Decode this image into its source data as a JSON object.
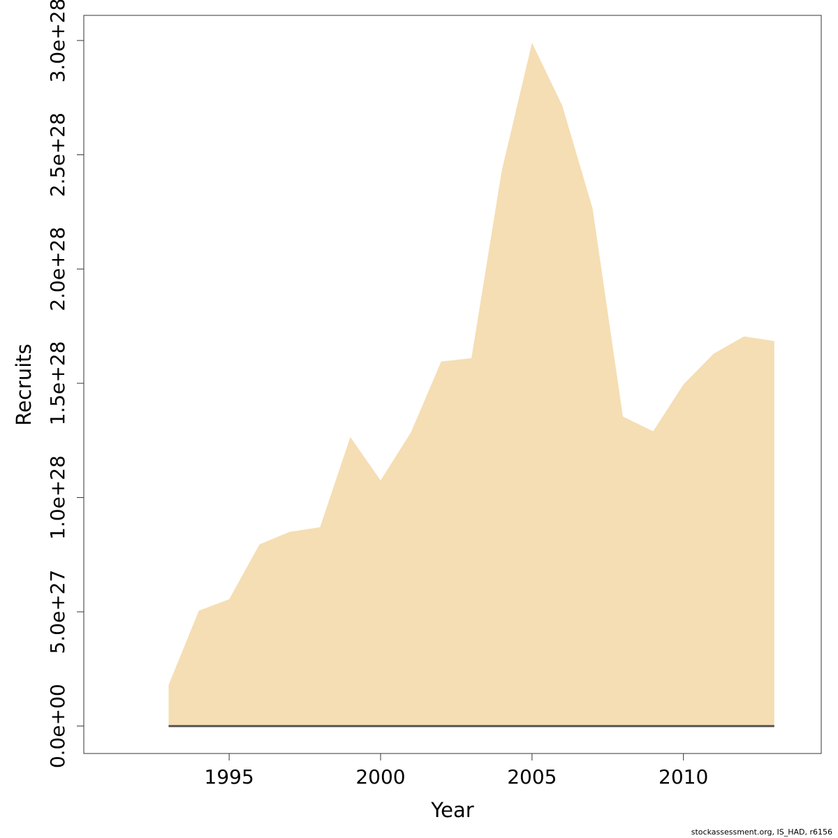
{
  "chart_data": {
    "type": "area",
    "title": "",
    "xlabel": "Year",
    "ylabel": "Recruits",
    "x": [
      1993,
      1994,
      1995,
      1996,
      1997,
      1998,
      1999,
      2000,
      2001,
      2002,
      2003,
      2004,
      2005,
      2006,
      2007,
      2008,
      2009,
      2010,
      2011,
      2012,
      2013
    ],
    "series": [
      {
        "values": [
          1.8e+27,
          5.05e+27,
          5.55e+27,
          7.95e+27,
          8.5e+27,
          8.7e+27,
          1.265e+28,
          1.075e+28,
          1.285e+28,
          1.595e+28,
          1.61e+28,
          2.43e+28,
          2.99e+28,
          2.715e+28,
          2.265e+28,
          1.355e+28,
          1.29e+28,
          1.495e+28,
          1.63e+28,
          1.705e+28,
          1.685e+28
        ],
        "color": "#f5deb3"
      }
    ],
    "xlim": [
      1990.2,
      2014.55
    ],
    "ylim": [
      -1.2e+27,
      3.11e+28
    ],
    "xticks": [
      {
        "value": 1995,
        "label": "1995"
      },
      {
        "value": 2000,
        "label": "2000"
      },
      {
        "value": 2005,
        "label": "2005"
      },
      {
        "value": 2010,
        "label": "2010"
      }
    ],
    "yticks": [
      {
        "value": 0,
        "label": "0.0e+00"
      },
      {
        "value": 5e+27,
        "label": "5.0e+27"
      },
      {
        "value": 1e+28,
        "label": "1.0e+28"
      },
      {
        "value": 1.5e+28,
        "label": "1.5e+28"
      },
      {
        "value": 2e+28,
        "label": "2.0e+28"
      },
      {
        "value": 2.5e+28,
        "label": "2.5e+28"
      },
      {
        "value": 3e+28,
        "label": "3.0e+28"
      }
    ],
    "baseline_color": "#555555",
    "grid": false,
    "legend": "none"
  },
  "footer": {
    "credit": "stockassessment.org, IS_HAD, r6156"
  }
}
